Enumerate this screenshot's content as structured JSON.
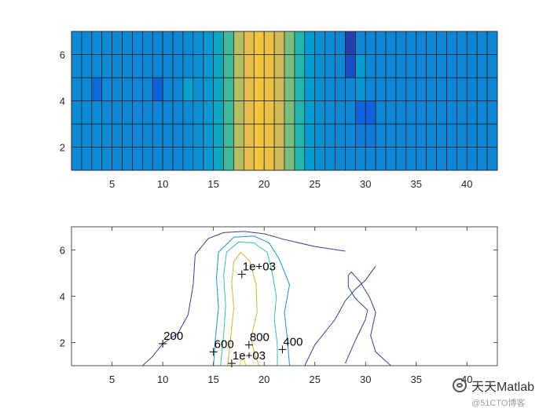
{
  "chart_data": [
    {
      "type": "heatmap",
      "title": "",
      "xlabel": "",
      "ylabel": "",
      "xlim": [
        1,
        43
      ],
      "ylim": [
        1,
        7
      ],
      "xticks": [
        5,
        10,
        15,
        20,
        25,
        30,
        35,
        40
      ],
      "yticks": [
        2,
        4,
        6
      ],
      "grid_edges": true,
      "colormap": "parula",
      "clim": [
        0,
        1200
      ],
      "default_value": 420,
      "column_values": [
        420,
        420,
        415,
        415,
        410,
        410,
        400,
        400,
        395,
        395,
        400,
        420,
        450,
        480,
        560,
        700,
        900,
        1000,
        1050,
        1020,
        950,
        800,
        650,
        500,
        440,
        420,
        410,
        410,
        405,
        400,
        400,
        400,
        395,
        395,
        395,
        395,
        395,
        395,
        395,
        395,
        395,
        395
      ],
      "cell_overrides": [
        {
          "col": 2,
          "row": 3,
          "value": 250
        },
        {
          "col": 8,
          "row": 3,
          "value": 200
        },
        {
          "col": 11,
          "row": 3,
          "value": 520
        },
        {
          "col": 27,
          "row": 5,
          "value": 80
        },
        {
          "col": 27,
          "row": 4,
          "value": 130
        },
        {
          "col": 28,
          "row": 4,
          "value": 500
        },
        {
          "col": 28,
          "row": 3,
          "value": 480
        },
        {
          "col": 28,
          "row": 2,
          "value": 220
        },
        {
          "col": 28,
          "row": 1,
          "value": 360
        },
        {
          "col": 29,
          "row": 2,
          "value": 220
        },
        {
          "col": 29,
          "row": 1,
          "value": 340
        }
      ]
    },
    {
      "type": "line",
      "subtype": "contour",
      "title": "",
      "xlabel": "",
      "ylabel": "",
      "xlim": [
        1,
        43
      ],
      "ylim": [
        1,
        7
      ],
      "xticks": [
        5,
        10,
        15,
        20,
        25,
        30,
        35,
        40
      ],
      "yticks": [
        2,
        4,
        6
      ],
      "series": [
        {
          "level": 200,
          "color": "#3b3f8f",
          "points": [
            [
              8,
              1
            ],
            [
              9,
              1.4
            ],
            [
              10,
              1.95
            ],
            [
              11.5,
              2.4
            ],
            [
              12.5,
              3.2
            ],
            [
              13,
              4.5
            ],
            [
              13.2,
              5.8
            ],
            [
              14.5,
              6.5
            ],
            [
              16,
              6.75
            ],
            [
              18,
              6.8
            ],
            [
              20,
              6.7
            ],
            [
              22,
              6.45
            ],
            [
              25,
              6.15
            ],
            [
              28,
              5.95
            ]
          ]
        },
        {
          "level": 200,
          "color": "#3b3f8f",
          "points": [
            [
              28,
              1.1
            ],
            [
              29,
              2.1
            ],
            [
              30,
              3.0
            ],
            [
              30.2,
              3.4
            ],
            [
              29,
              3.9
            ],
            [
              28.3,
              4.4
            ],
            [
              28.3,
              4.9
            ],
            [
              28.6,
              5.05
            ],
            [
              29.5,
              4.6
            ],
            [
              30.4,
              3.95
            ],
            [
              31,
              3.3
            ],
            [
              30.5,
              2.3
            ],
            [
              31,
              1.6
            ],
            [
              32,
              1.2
            ],
            [
              32.5,
              1.0
            ]
          ]
        },
        {
          "level": 200,
          "color": "#3b3f8f",
          "points": [
            [
              24,
              1.0
            ],
            [
              25,
              1.9
            ],
            [
              27,
              3.0
            ],
            [
              28,
              3.8
            ],
            [
              29,
              4.3
            ],
            [
              30,
              4.7
            ],
            [
              31,
              5.3
            ]
          ]
        },
        {
          "level": 400,
          "color": "#1f8fcf",
          "points": [
            [
              15,
              1
            ],
            [
              15.2,
              2.2
            ],
            [
              15.5,
              3.5
            ],
            [
              15.3,
              4.8
            ],
            [
              15.5,
              5.9
            ],
            [
              17,
              6.55
            ],
            [
              19,
              6.6
            ],
            [
              20.5,
              6.3
            ],
            [
              21.5,
              5.6
            ],
            [
              22.5,
              4.5
            ],
            [
              22,
              3.3
            ],
            [
              22.3,
              2.1
            ],
            [
              22.5,
              1
            ]
          ]
        },
        {
          "level": 600,
          "color": "#3cbfa5",
          "points": [
            [
              15.7,
              1
            ],
            [
              16,
              2.3
            ],
            [
              16.2,
              3.6
            ],
            [
              16,
              4.9
            ],
            [
              16.3,
              5.9
            ],
            [
              17.5,
              6.35
            ],
            [
              19,
              6.3
            ],
            [
              20.3,
              5.9
            ],
            [
              20.8,
              5.0
            ],
            [
              21.2,
              4.0
            ],
            [
              21,
              3.0
            ],
            [
              21.3,
              1.9
            ],
            [
              21.3,
              1
            ]
          ]
        },
        {
          "level": 800,
          "color": "#c9b83a",
          "points": [
            [
              16.4,
              1
            ],
            [
              16.7,
              2.2
            ],
            [
              17.0,
              3.5
            ],
            [
              16.8,
              4.6
            ],
            [
              17.0,
              5.5
            ],
            [
              17.7,
              5.9
            ],
            [
              18.6,
              5.5
            ],
            [
              19.2,
              4.5
            ],
            [
              19.3,
              3.3
            ],
            [
              18.7,
              2.2
            ],
            [
              19.0,
              1.6
            ],
            [
              19.5,
              1
            ]
          ]
        },
        {
          "level": 1000,
          "color": "#e8c838",
          "points": [
            [
              17.6,
              1
            ],
            [
              17.7,
              1.2
            ],
            [
              18.0,
              1.3
            ],
            [
              18.2,
              1
            ]
          ]
        }
      ],
      "labels": [
        {
          "text": "1e+03",
          "x": 17.8,
          "y": 4.95
        },
        {
          "text": "200",
          "x": 10.0,
          "y": 1.95
        },
        {
          "text": "600",
          "x": 15.0,
          "y": 1.6
        },
        {
          "text": "800",
          "x": 18.5,
          "y": 1.9
        },
        {
          "text": "1e+03",
          "x": 16.8,
          "y": 1.1
        },
        {
          "text": "400",
          "x": 21.8,
          "y": 1.7
        }
      ]
    }
  ],
  "watermark": {
    "name": "天天Matlab",
    "sub": "@51CTO博客"
  }
}
